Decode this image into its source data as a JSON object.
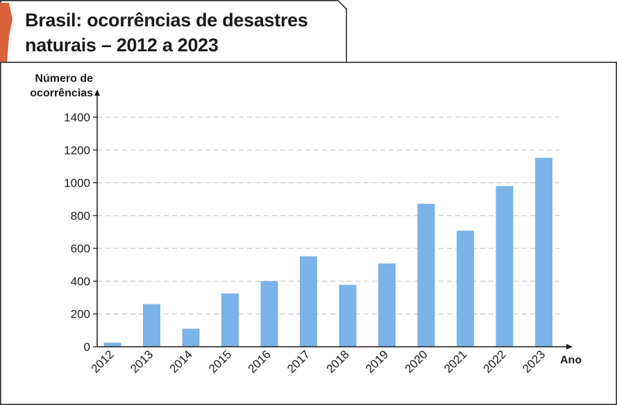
{
  "title": "Brasil: ocorrências de desastres naturais – 2012 a 2023",
  "colors": {
    "bar": "#7cb3e8",
    "accent": "#d9603b",
    "grid": "#bdbdbd",
    "text": "#1a1a1a"
  },
  "chart_data": {
    "type": "bar",
    "title": "Brasil: ocorrências de desastres naturais – 2012 a 2023",
    "xlabel": "Ano",
    "ylabel": "Número de ocorrências",
    "ylim": [
      0,
      1400
    ],
    "yticks": [
      0,
      200,
      400,
      600,
      800,
      1000,
      1200,
      1400
    ],
    "grid": true,
    "categories": [
      "2012",
      "2013",
      "2014",
      "2015",
      "2016",
      "2017",
      "2018",
      "2019",
      "2020",
      "2021",
      "2022",
      "2023"
    ],
    "values": [
      25,
      260,
      110,
      325,
      400,
      552,
      378,
      508,
      872,
      708,
      980,
      1152
    ]
  }
}
